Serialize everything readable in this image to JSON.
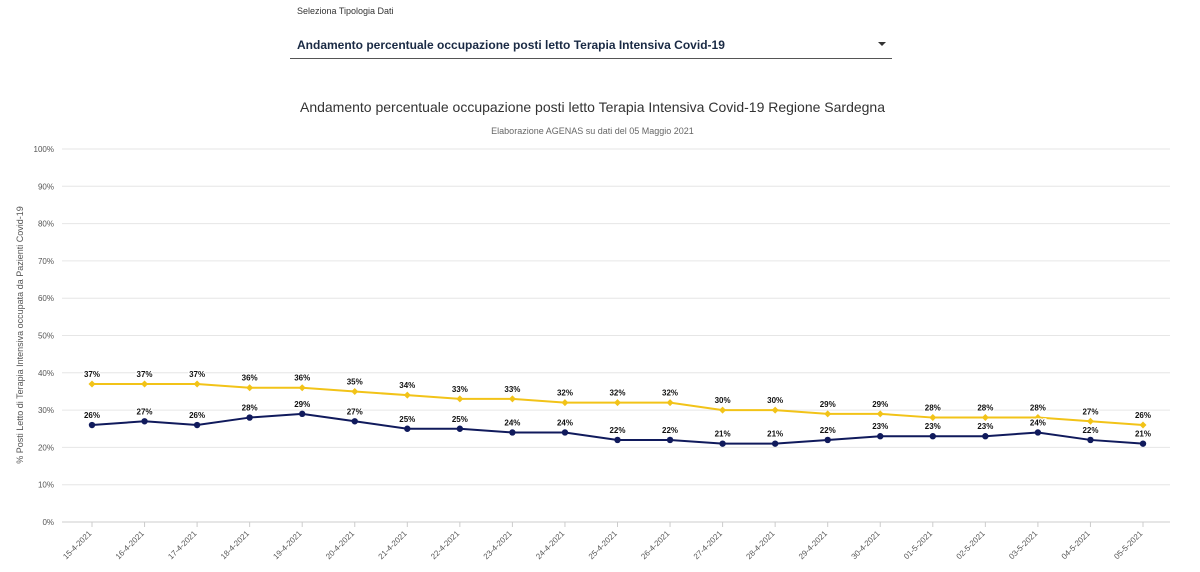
{
  "selector": {
    "label": "Seleziona Tipologia Dati",
    "value": "Andamento percentuale occupazione posti letto Terapia Intensiva Covid-19"
  },
  "chart_data": {
    "type": "line",
    "title": "Andamento percentuale occupazione posti letto Terapia Intensiva Covid-19 Regione Sardegna",
    "subtitle": "Elaborazione AGENAS su dati del 05 Maggio 2021",
    "xlabel": "",
    "ylabel": "% Posti Letto di Terapia Intensiva occupata da Pazienti Covid-19",
    "ylim": [
      0,
      100
    ],
    "yticks": [
      "0%",
      "10%",
      "20%",
      "30%",
      "40%",
      "50%",
      "60%",
      "70%",
      "80%",
      "90%",
      "100%"
    ],
    "grid": true,
    "categories": [
      "15-4-2021",
      "16-4-2021",
      "17-4-2021",
      "18-4-2021",
      "19-4-2021",
      "20-4-2021",
      "21-4-2021",
      "22-4-2021",
      "23-4-2021",
      "24-4-2021",
      "25-4-2021",
      "26-4-2021",
      "27-4-2021",
      "28-4-2021",
      "29-4-2021",
      "30-4-2021",
      "01-5-2021",
      "02-5-2021",
      "03-5-2021",
      "04-5-2021",
      "05-5-2021"
    ],
    "series": [
      {
        "values": [
          37,
          37,
          37,
          36,
          36,
          35,
          34,
          33,
          33,
          32,
          32,
          32,
          30,
          30,
          29,
          29,
          28,
          28,
          28,
          27,
          26
        ],
        "labels": [
          "37%",
          "37%",
          "37%",
          "36%",
          "36%",
          "35%",
          "34%",
          "33%",
          "33%",
          "32%",
          "32%",
          "32%",
          "30%",
          "30%",
          "29%",
          "29%",
          "28%",
          "28%",
          "28%",
          "27%",
          "26%"
        ],
        "color": "#f2c318",
        "marker": "diamond"
      },
      {
        "values": [
          26,
          27,
          26,
          28,
          29,
          27,
          25,
          25,
          24,
          24,
          22,
          22,
          21,
          21,
          22,
          23,
          23,
          23,
          24,
          22,
          21
        ],
        "labels": [
          "26%",
          "27%",
          "26%",
          "28%",
          "29%",
          "27%",
          "25%",
          "25%",
          "24%",
          "24%",
          "22%",
          "22%",
          "21%",
          "21%",
          "22%",
          "23%",
          "23%",
          "23%",
          "24%",
          "22%",
          "21%"
        ],
        "color": "#101a5c",
        "marker": "circle"
      }
    ]
  }
}
